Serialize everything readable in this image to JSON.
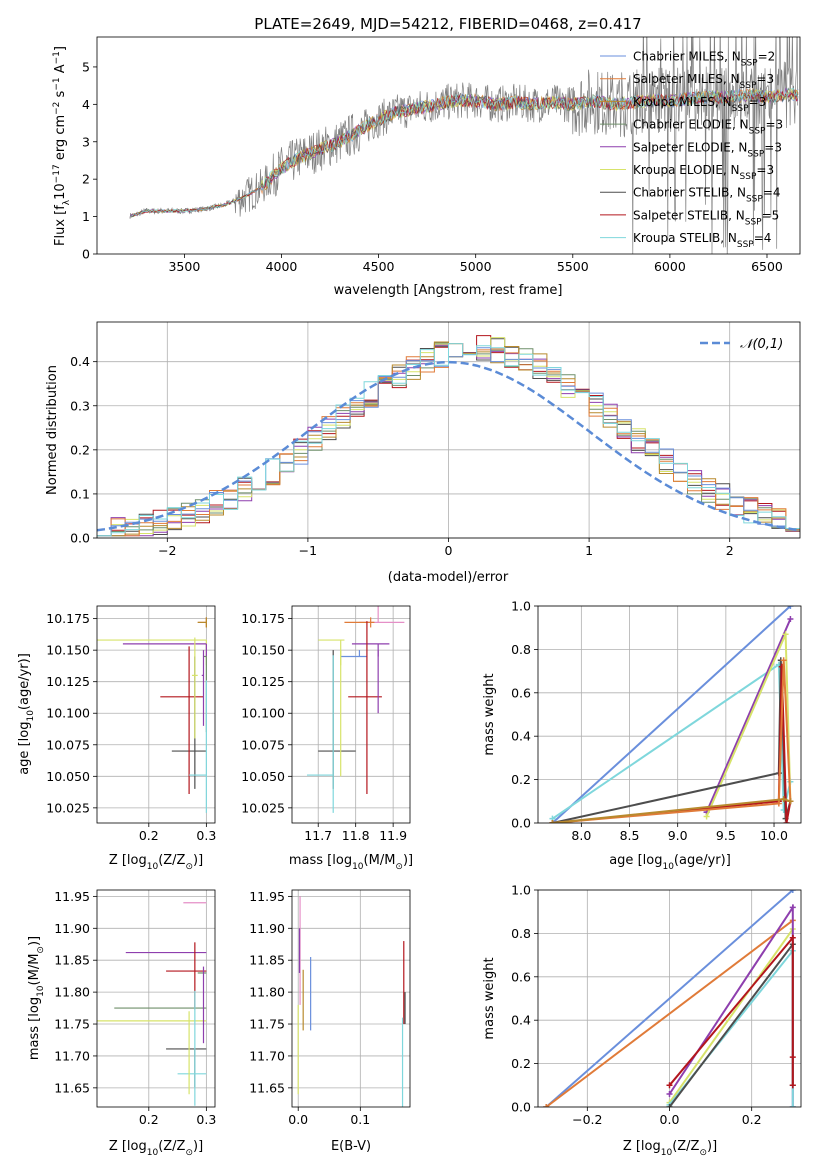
{
  "colors": {
    "Chabrier MILES": "#6a8fdc",
    "Salpeter MILES": "#e07b39",
    "Kroupa MILES": "#b88a2e",
    "Chabrier ELODIE": "#6f8f6a",
    "Salpeter ELODIE": "#8e3fae",
    "Kroupa ELODIE": "#d7e36a",
    "Chabrier STELIB": "#4d4d4d",
    "Salpeter STELIB": "#b3161d",
    "Kroupa STELIB": "#7fd7dc",
    "extra": "#e58fc7"
  },
  "chart_data": [
    {
      "id": "spectrum",
      "type": "line",
      "title": "PLATE=2649, MJD=54212, FIBERID=0468, z=0.417",
      "xlabel": "wavelength [Angstrom, rest frame]",
      "ylabel": "Flux [f",
      "ylabel_sub": "λ",
      "ylabel_rest": "10",
      "ylabel_exp": "−17",
      "ylabel_units": " erg cm",
      "ylabel_units_exp": "−2",
      "ylabel_units2": " s",
      "ylabel_units2_exp": "−1",
      "ylabel_units3": " A",
      "ylabel_units3_exp": "−1",
      "ylabel_end": "]",
      "xlim": [
        3050,
        6670
      ],
      "ylim": [
        0,
        5.8
      ],
      "xticks": [
        3500,
        4000,
        4500,
        5000,
        5500,
        6000,
        6500
      ],
      "yticks": [
        0,
        1,
        2,
        3,
        4,
        5
      ],
      "legend_position": "top-right",
      "legend": [
        {
          "name": "Chabrier MILES",
          "nssp": "2"
        },
        {
          "name": "Salpeter MILES",
          "nssp": "3"
        },
        {
          "name": "Kroupa MILES",
          "nssp": "3"
        },
        {
          "name": "Chabrier ELODIE",
          "nssp": "3"
        },
        {
          "name": "Salpeter ELODIE",
          "nssp": "3"
        },
        {
          "name": "Kroupa ELODIE",
          "nssp": "3"
        },
        {
          "name": "Chabrier STELIB",
          "nssp": "4"
        },
        {
          "name": "Salpeter STELIB",
          "nssp": "5"
        },
        {
          "name": "Kroupa STELIB",
          "nssp": "4"
        }
      ],
      "legend_nssp_label": "N",
      "legend_nssp_sub": "SSP",
      "continuum": {
        "x": [
          3200,
          3250,
          3300,
          3400,
          3500,
          3600,
          3700,
          3800,
          3900,
          4000,
          4100,
          4200,
          4300,
          4400,
          4500,
          4600,
          4700,
          4800,
          4900,
          5000,
          5100,
          5200,
          5300,
          5400,
          5500,
          5600,
          5700,
          5800,
          5900,
          6000,
          6100,
          6200,
          6300,
          6400,
          6500,
          6600
        ],
        "y": [
          1.0,
          1.05,
          1.15,
          1.15,
          1.15,
          1.2,
          1.3,
          1.5,
          1.8,
          2.3,
          2.6,
          2.8,
          3.0,
          3.3,
          3.6,
          3.8,
          3.9,
          4.0,
          4.1,
          4.1,
          4.0,
          4.05,
          4.0,
          4.05,
          4.0,
          4.1,
          4.0,
          4.05,
          4.1,
          4.1,
          4.15,
          4.2,
          4.2,
          4.25,
          4.2,
          4.25
        ]
      }
    },
    {
      "id": "residuals",
      "type": "histogram",
      "xlabel": "(data-model)/error",
      "ylabel": "Normed distribution",
      "xlim": [
        -2.5,
        2.5
      ],
      "ylim": [
        0,
        0.49
      ],
      "xticks": [
        -2,
        -1,
        0,
        1,
        2
      ],
      "yticks": [
        0.0,
        0.1,
        0.2,
        0.3,
        0.4
      ],
      "legend_position": "top-right",
      "gaussian_label": "𝒩(0,1)",
      "bin_edges_start": -2.5,
      "bin_width": 0.1
    },
    {
      "id": "age_vs_Z",
      "type": "errorbar",
      "xlabel": "Z [log",
      "xlabel_sub": "10",
      "xlabel_rest": "(Z/Z",
      "xlabel_sun": "⊙",
      "xlabel_end": ")]",
      "ylabel": "age  [log",
      "ylabel_sub": "10",
      "ylabel_rest": "(age/yr)]",
      "xlim": [
        0.11,
        0.315
      ],
      "ylim": [
        10.013,
        10.185
      ],
      "xticks": [
        0.2,
        0.3
      ],
      "yticks": [
        10.025,
        10.05,
        10.075,
        10.1,
        10.125,
        10.15,
        10.175
      ],
      "points": [
        {
          "model": "Salpeter MILES",
          "x": 0.3,
          "xerr": [
            0.015,
            0.0
          ],
          "y": 10.172,
          "yerr": [
            0.004,
            0.004
          ]
        },
        {
          "model": "Kroupa MILES",
          "x": 0.3,
          "xerr": [
            0.015,
            0.0
          ],
          "y": 10.172,
          "yerr": [
            0.004,
            0.004
          ]
        },
        {
          "model": "Kroupa ELODIE",
          "x": 0.3,
          "xerr": [
            0.19,
            0.0
          ],
          "y": 10.158,
          "yerr": [
            0.02,
            0.0
          ]
        },
        {
          "model": "Salpeter ELODIE",
          "x": 0.3,
          "xerr": [
            0.145,
            0.0
          ],
          "y": 10.155,
          "yerr": [
            0.01,
            0.0
          ]
        },
        {
          "model": "Chabrier STELIB",
          "x": 0.28,
          "xerr": [
            0.04,
            0.02
          ],
          "y": 10.07,
          "yerr": [
            0.03,
            0.075
          ]
        },
        {
          "model": "Salpeter STELIB",
          "x": 0.27,
          "xerr": [
            0.05,
            0.025
          ],
          "y": 10.113,
          "yerr": [
            0.077,
            0.04
          ]
        },
        {
          "model": "Chabrier ELODIE",
          "x": 0.3,
          "xerr": [
            0.005,
            0.0
          ],
          "y": 10.145,
          "yerr": [
            0.06,
            0.0
          ]
        },
        {
          "model": "Salpeter ELODIE",
          "x": 0.295,
          "xerr": [
            0.003,
            0.0
          ],
          "y": 10.13,
          "yerr": [
            0.04,
            0.02
          ]
        },
        {
          "model": "Kroupa STELIB",
          "x": 0.3,
          "xerr": [
            0.03,
            0.0
          ],
          "y": 10.051,
          "yerr": [
            0.03,
            0.075
          ]
        },
        {
          "model": "Kroupa ELODIE",
          "x": 0.28,
          "xerr": [
            0.005,
            0.005
          ],
          "y": 10.13,
          "yerr": [
            0.05,
            0.03
          ]
        }
      ]
    },
    {
      "id": "age_vs_mass",
      "type": "errorbar",
      "xlabel": "mass [log",
      "xlabel_sub": "10",
      "xlabel_rest": "(M/M",
      "xlabel_sun": "⊙",
      "xlabel_end": ")]",
      "xlim": [
        11.63,
        11.945
      ],
      "ylim": [
        10.013,
        10.185
      ],
      "xticks": [
        11.7,
        11.8,
        11.9
      ],
      "yticks": [
        10.025,
        10.05,
        10.075,
        10.1,
        10.125,
        10.15,
        10.175
      ],
      "points": [
        {
          "model": "extra",
          "x": 11.86,
          "xerr": [
            0.05,
            0.07
          ],
          "y": 10.172,
          "yerr": [
            0.0,
            0.05
          ]
        },
        {
          "model": "Salpeter MILES",
          "x": 11.84,
          "xerr": [
            0.07,
            0.01
          ],
          "y": 10.172,
          "yerr": [
            0.004,
            0.004
          ]
        },
        {
          "model": "Kroupa ELODIE",
          "x": 11.76,
          "xerr": [
            0.06,
            0.01
          ],
          "y": 10.158,
          "yerr": [
            0.02,
            0.0
          ]
        },
        {
          "model": "Salpeter ELODIE",
          "x": 11.86,
          "xerr": [
            0.07,
            0.03
          ],
          "y": 10.155,
          "yerr": [
            0.01,
            0.0
          ]
        },
        {
          "model": "Chabrier MILES",
          "x": 11.81,
          "xerr": [
            0.05,
            0.02
          ],
          "y": 10.145,
          "yerr": [
            0.0,
            0.005
          ]
        },
        {
          "model": "Salpeter STELIB",
          "x": 11.83,
          "xerr": [
            0.05,
            0.04
          ],
          "y": 10.113,
          "yerr": [
            0.077,
            0.06
          ]
        },
        {
          "model": "Chabrier STELIB",
          "x": 11.74,
          "xerr": [
            0.04,
            0.06
          ],
          "y": 10.07,
          "yerr": [
            0.03,
            0.08
          ]
        },
        {
          "model": "Kroupa STELIB",
          "x": 11.74,
          "xerr": [
            0.07,
            0.0
          ],
          "y": 10.051,
          "yerr": [
            0.03,
            0.095
          ]
        },
        {
          "model": "Kroupa ELODIE",
          "x": 11.76,
          "xerr": [
            0.0,
            0.0
          ],
          "y": 10.1,
          "yerr": [
            0.05,
            0.05
          ]
        },
        {
          "model": "Salpeter ELODIE",
          "x": 11.86,
          "xerr": [
            0.0,
            0.0
          ],
          "y": 10.13,
          "yerr": [
            0.03,
            0.02
          ]
        }
      ]
    },
    {
      "id": "mass_weight_vs_age",
      "type": "line",
      "xlabel": "age  [log",
      "xlabel_sub": "10",
      "xlabel_rest": "(age/yr)]",
      "ylabel": "mass weight",
      "xlim": [
        7.55,
        10.28
      ],
      "ylim": [
        0,
        1
      ],
      "xticks": [
        8.0,
        8.5,
        9.0,
        9.5,
        10.0
      ],
      "yticks": [
        0.0,
        0.2,
        0.4,
        0.6,
        0.8,
        1.0
      ],
      "series": [
        {
          "model": "Chabrier MILES",
          "x": [
            7.7,
            10.17
          ],
          "y": [
            0.0,
            1.0
          ]
        },
        {
          "model": "Kroupa STELIB",
          "x": [
            7.7,
            10.05,
            10.1,
            10.17
          ],
          "y": [
            0.02,
            0.73,
            0.06,
            0.19
          ]
        },
        {
          "model": "Salpeter ELODIE",
          "x": [
            9.3,
            10.17,
            9.3
          ],
          "y": [
            0.05,
            0.94,
            0.05
          ]
        },
        {
          "model": "Kroupa ELODIE",
          "x": [
            9.3,
            10.12,
            10.17
          ],
          "y": [
            0.03,
            0.87,
            0.1
          ]
        },
        {
          "model": "Chabrier STELIB",
          "x": [
            7.7,
            10.05,
            10.07,
            10.12,
            10.17
          ],
          "y": [
            0.0,
            0.23,
            0.75,
            0.02,
            0.1
          ]
        },
        {
          "model": "Salpeter STELIB",
          "x": [
            7.7,
            10.05,
            10.08,
            10.13,
            10.17
          ],
          "y": [
            0.0,
            0.1,
            0.72,
            0.0,
            0.1
          ]
        },
        {
          "model": "Salpeter MILES",
          "x": [
            7.7,
            10.05,
            10.1,
            10.17
          ],
          "y": [
            0.0,
            0.09,
            0.75,
            0.1
          ]
        },
        {
          "model": "Kroupa MILES",
          "x": [
            7.7,
            10.1,
            10.17
          ],
          "y": [
            0.0,
            0.11,
            0.1
          ]
        }
      ]
    },
    {
      "id": "mass_vs_Z",
      "type": "errorbar",
      "xlabel": "Z [log",
      "xlabel_sub": "10",
      "xlabel_rest": "(Z/Z",
      "xlabel_sun": "⊙",
      "xlabel_end": ")]",
      "ylabel": "mass [log",
      "ylabel_sub": "10",
      "ylabel_rest": "(M/M",
      "ylabel_sun": "⊙",
      "ylabel_end": ")]",
      "xlim": [
        0.11,
        0.315
      ],
      "ylim": [
        11.62,
        11.96
      ],
      "xticks": [
        0.2,
        0.3
      ],
      "yticks": [
        11.65,
        11.7,
        11.75,
        11.8,
        11.85,
        11.9,
        11.95
      ],
      "points": [
        {
          "model": "extra",
          "x": 0.3,
          "xerr": [
            0.04,
            0.0
          ],
          "y": 11.94,
          "yerr": [
            0.0,
            0.0
          ]
        },
        {
          "model": "Salpeter ELODIE",
          "x": 0.3,
          "xerr": [
            0.14,
            0.0
          ],
          "y": 11.862,
          "yerr": [
            0.0,
            0.0
          ]
        },
        {
          "model": "Salpeter STELIB",
          "x": 0.28,
          "xerr": [
            0.05,
            0.02
          ],
          "y": 11.833,
          "yerr": [
            0.06,
            0.045
          ]
        },
        {
          "model": "Chabrier ELODIE",
          "x": 0.3,
          "xerr": [
            0.015,
            0.0
          ],
          "y": 11.83,
          "yerr": [
            0.0,
            0.0
          ]
        },
        {
          "model": "Chabrier ELODIE",
          "x": 0.3,
          "xerr": [
            0.16,
            0.0
          ],
          "y": 11.775,
          "yerr": [
            0.0,
            0.0
          ]
        },
        {
          "model": "Kroupa ELODIE",
          "x": 0.3,
          "xerr": [
            0.19,
            0.0
          ],
          "y": 11.755,
          "yerr": [
            0.0,
            0.0
          ]
        },
        {
          "model": "Chabrier STELIB",
          "x": 0.28,
          "xerr": [
            0.05,
            0.02
          ],
          "y": 11.711,
          "yerr": [
            0.06,
            0.0
          ]
        },
        {
          "model": "Kroupa STELIB",
          "x": 0.28,
          "xerr": [
            0.03,
            0.02
          ],
          "y": 11.672,
          "yerr": [
            0.05,
            0.13
          ]
        },
        {
          "model": "Kroupa ELODIE",
          "x": 0.27,
          "xerr": [
            0.0,
            0.0
          ],
          "y": 11.7,
          "yerr": [
            0.06,
            0.07
          ]
        },
        {
          "model": "Salpeter ELODIE",
          "x": 0.295,
          "xerr": [
            0.0,
            0.0
          ],
          "y": 11.78,
          "yerr": [
            0.06,
            0.06
          ]
        }
      ]
    },
    {
      "id": "mass_vs_ebv",
      "type": "errorbar",
      "xlabel": "E(B-V)",
      "xlim": [
        -0.01,
        0.18
      ],
      "ylim": [
        11.62,
        11.96
      ],
      "xticks": [
        0.0,
        0.1
      ],
      "yticks": [
        11.65,
        11.7,
        11.75,
        11.8,
        11.85,
        11.9,
        11.95
      ],
      "points": [
        {
          "model": "extra",
          "x": 0.003,
          "xerr": [
            0.0,
            0.0
          ],
          "y": 11.86,
          "yerr": [
            0.08,
            0.09
          ]
        },
        {
          "model": "Salpeter ELODIE",
          "x": 0.002,
          "xerr": [
            0.0,
            0.0
          ],
          "y": 11.86,
          "yerr": [
            0.03,
            0.04
          ]
        },
        {
          "model": "Kroupa MILES",
          "x": 0.008,
          "xerr": [
            0.0,
            0.0
          ],
          "y": 11.8,
          "yerr": [
            0.06,
            0.035
          ]
        },
        {
          "model": "Chabrier MILES",
          "x": 0.02,
          "xerr": [
            0.0,
            0.0
          ],
          "y": 11.8,
          "yerr": [
            0.06,
            0.055
          ]
        },
        {
          "model": "Kroupa ELODIE",
          "x": 0.0,
          "xerr": [
            0.0,
            0.0
          ],
          "y": 11.72,
          "yerr": [
            0.08,
            0.06
          ]
        },
        {
          "model": "Salpeter STELIB",
          "x": 0.17,
          "xerr": [
            0.0,
            0.0
          ],
          "y": 11.82,
          "yerr": [
            0.07,
            0.06
          ]
        },
        {
          "model": "Chabrier STELIB",
          "x": 0.172,
          "xerr": [
            0.0,
            0.0
          ],
          "y": 11.77,
          "yerr": [
            0.02,
            0.03
          ]
        },
        {
          "model": "Kroupa STELIB",
          "x": 0.168,
          "xerr": [
            0.0,
            0.0
          ],
          "y": 11.69,
          "yerr": [
            0.07,
            0.07
          ]
        }
      ]
    },
    {
      "id": "mass_weight_vs_Z",
      "type": "line",
      "xlabel": "Z [log",
      "xlabel_sub": "10",
      "xlabel_rest": "(Z/Z",
      "xlabel_sun": "⊙",
      "xlabel_end": ")]",
      "ylabel": "mass weight",
      "xlim": [
        -0.32,
        0.32
      ],
      "ylim": [
        0,
        1
      ],
      "xticks": [
        -0.2,
        0.0,
        0.2
      ],
      "yticks": [
        0.0,
        0.2,
        0.4,
        0.6,
        0.8,
        1.0
      ],
      "series": [
        {
          "model": "Chabrier MILES",
          "x": [
            -0.3,
            0.3
          ],
          "y": [
            0.0,
            1.0
          ]
        },
        {
          "model": "Salpeter MILES",
          "x": [
            -0.3,
            0.3
          ],
          "y": [
            0.0,
            0.86
          ]
        },
        {
          "model": "Kroupa ELODIE",
          "x": [
            0.0,
            0.3
          ],
          "y": [
            0.02,
            0.82
          ]
        },
        {
          "model": "Salpeter ELODIE",
          "x": [
            0.0,
            0.3,
            0.3
          ],
          "y": [
            0.06,
            0.92,
            0.0
          ]
        },
        {
          "model": "Kroupa STELIB",
          "x": [
            0.0,
            0.3,
            0.3
          ],
          "y": [
            0.01,
            0.72,
            0.0
          ]
        },
        {
          "model": "Chabrier STELIB",
          "x": [
            0.0,
            0.3,
            0.3
          ],
          "y": [
            0.0,
            0.75,
            0.1
          ]
        },
        {
          "model": "Salpeter STELIB",
          "x": [
            0.0,
            0.3,
            0.3,
            0.3
          ],
          "y": [
            0.1,
            0.78,
            0.23,
            0.1
          ]
        }
      ]
    }
  ]
}
